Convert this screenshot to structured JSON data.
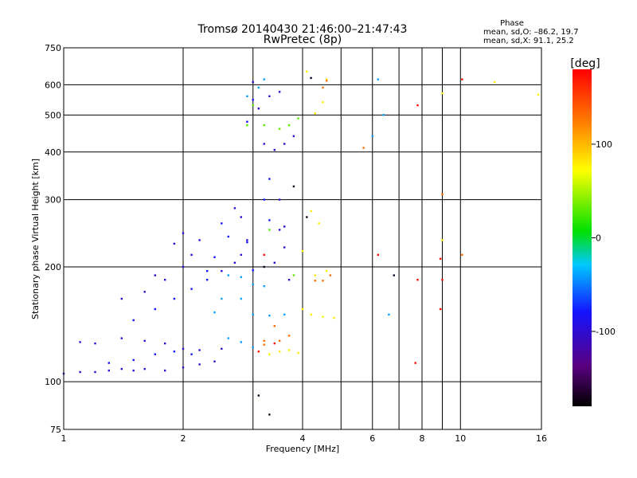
{
  "chart_data": {
    "type": "scatter",
    "title": "Tromsø 20140430 21:46:00–21:47:43",
    "subtitle": "RwPretec (8p)",
    "xlabel": "Frequency [MHz]",
    "ylabel": "Stationary phase Virtual Height [km]",
    "xscale": "log",
    "yscale": "log",
    "xlim": [
      1,
      16
    ],
    "ylim": [
      75,
      750
    ],
    "x_ticks": [
      1,
      2,
      4,
      6,
      8,
      10,
      16
    ],
    "y_ticks": [
      75,
      100,
      200,
      300,
      400,
      500,
      600,
      750
    ],
    "x_minor_grid": [
      3,
      5,
      7,
      9
    ],
    "grid": true,
    "stats": {
      "heading": "Phase",
      "line_o": "mean, sd,O:  –86.2, 19.7",
      "line_x": "mean, sd,X:  91.1, 25.2"
    },
    "colorbar": {
      "label": "[deg]",
      "range": [
        -180,
        180
      ],
      "ticks": [
        100,
        0,
        -100
      ]
    },
    "series": [
      {
        "phase": -100,
        "points": [
          [
            1.0,
            105
          ],
          [
            1.1,
            106
          ],
          [
            1.2,
            106
          ],
          [
            1.3,
            107
          ],
          [
            1.4,
            108
          ],
          [
            1.5,
            107
          ],
          [
            1.6,
            108
          ],
          [
            1.8,
            107
          ],
          [
            2.0,
            109
          ],
          [
            2.2,
            111
          ],
          [
            2.4,
            113
          ],
          [
            1.1,
            127
          ],
          [
            1.2,
            126
          ],
          [
            1.4,
            130
          ],
          [
            1.6,
            128
          ],
          [
            1.8,
            126
          ],
          [
            2.0,
            122
          ],
          [
            2.2,
            121
          ],
          [
            2.5,
            122
          ],
          [
            1.4,
            165
          ],
          [
            1.6,
            172
          ],
          [
            1.8,
            185
          ],
          [
            2.0,
            200
          ],
          [
            2.1,
            215
          ],
          [
            2.2,
            235
          ],
          [
            2.0,
            245
          ],
          [
            1.9,
            230
          ],
          [
            1.7,
            190
          ],
          [
            2.5,
            195
          ],
          [
            2.7,
            205
          ],
          [
            2.8,
            215
          ],
          [
            2.9,
            235
          ],
          [
            2.8,
            270
          ],
          [
            2.7,
            285
          ],
          [
            3.2,
            420
          ],
          [
            3.4,
            405
          ],
          [
            3.6,
            420
          ],
          [
            3.8,
            440
          ],
          [
            3.1,
            520
          ],
          [
            3.3,
            560
          ],
          [
            3.5,
            575
          ],
          [
            3.0,
            610
          ],
          [
            3.5,
            300
          ],
          [
            3.5,
            250
          ],
          [
            3.6,
            225
          ],
          [
            3.4,
            205
          ],
          [
            3.7,
            185
          ],
          [
            3.6,
            255
          ]
        ]
      },
      {
        "phase": -80,
        "points": [
          [
            1.3,
            112
          ],
          [
            1.5,
            114
          ],
          [
            1.7,
            118
          ],
          [
            1.9,
            120
          ],
          [
            2.1,
            118
          ],
          [
            1.5,
            145
          ],
          [
            1.7,
            155
          ],
          [
            1.9,
            165
          ],
          [
            2.1,
            175
          ],
          [
            2.3,
            185
          ],
          [
            2.3,
            195
          ],
          [
            2.4,
            212
          ],
          [
            2.6,
            240
          ],
          [
            2.5,
            260
          ],
          [
            2.9,
            232
          ],
          [
            3.0,
            196
          ],
          [
            3.2,
            300
          ],
          [
            3.3,
            265
          ],
          [
            3.3,
            340
          ],
          [
            2.9,
            480
          ],
          [
            3.0,
            548
          ]
        ]
      },
      {
        "phase": -40,
        "points": [
          [
            2.6,
            190
          ],
          [
            2.8,
            188
          ],
          [
            3.0,
            180
          ],
          [
            3.2,
            178
          ],
          [
            2.5,
            165
          ],
          [
            2.8,
            165
          ],
          [
            3.0,
            150
          ],
          [
            3.3,
            149
          ],
          [
            3.6,
            150
          ],
          [
            2.6,
            130
          ],
          [
            2.8,
            127
          ],
          [
            3.0,
            123
          ],
          [
            2.4,
            152
          ],
          [
            2.9,
            560
          ],
          [
            3.1,
            590
          ],
          [
            3.2,
            620
          ],
          [
            6.2,
            620
          ],
          [
            6.4,
            500
          ],
          [
            6.0,
            440
          ],
          [
            6.6,
            150
          ]
        ]
      },
      {
        "phase": 30,
        "points": [
          [
            3.0,
            530
          ],
          [
            3.2,
            470
          ],
          [
            3.5,
            460
          ],
          [
            3.7,
            470
          ],
          [
            3.9,
            490
          ],
          [
            2.9,
            470
          ],
          [
            3.3,
            250
          ],
          [
            3.4,
            140
          ],
          [
            3.8,
            190
          ]
        ]
      },
      {
        "phase": 80,
        "points": [
          [
            3.3,
            118
          ],
          [
            3.5,
            120
          ],
          [
            3.7,
            121
          ],
          [
            3.9,
            119
          ],
          [
            4.0,
            155
          ],
          [
            4.2,
            150
          ],
          [
            4.5,
            148
          ],
          [
            4.8,
            147
          ],
          [
            4.3,
            505
          ],
          [
            4.5,
            540
          ],
          [
            4.6,
            620
          ],
          [
            4.1,
            650
          ],
          [
            4.2,
            280
          ],
          [
            4.4,
            260
          ],
          [
            4.6,
            195
          ],
          [
            4.3,
            190
          ],
          [
            9.0,
            570
          ],
          [
            9.0,
            235
          ],
          [
            4.0,
            220
          ],
          [
            12.2,
            610
          ],
          [
            15.7,
            565
          ]
        ]
      },
      {
        "phase": 130,
        "points": [
          [
            3.2,
            125
          ],
          [
            3.5,
            128
          ],
          [
            3.7,
            132
          ],
          [
            3.2,
            128
          ],
          [
            4.5,
            184
          ],
          [
            4.3,
            184
          ],
          [
            4.7,
            190
          ],
          [
            4.5,
            590
          ],
          [
            4.6,
            615
          ],
          [
            3.4,
            140
          ],
          [
            5.7,
            410
          ],
          [
            10.1,
            215
          ],
          [
            9.0,
            310
          ]
        ]
      },
      {
        "phase": 175,
        "points": [
          [
            3.1,
            120
          ],
          [
            3.4,
            126
          ],
          [
            3.2,
            215
          ],
          [
            6.2,
            215
          ],
          [
            7.8,
            185
          ],
          [
            7.8,
            530
          ],
          [
            8.9,
            155
          ],
          [
            10.1,
            620
          ],
          [
            9.0,
            185
          ],
          [
            8.9,
            210
          ],
          [
            7.7,
            112
          ]
        ]
      },
      {
        "phase": -170,
        "points": [
          [
            3.1,
            92
          ],
          [
            3.2,
            200
          ],
          [
            4.1,
            270
          ],
          [
            3.8,
            325
          ],
          [
            4.2,
            625
          ],
          [
            6.8,
            190
          ],
          [
            3.3,
            82
          ]
        ]
      }
    ]
  }
}
